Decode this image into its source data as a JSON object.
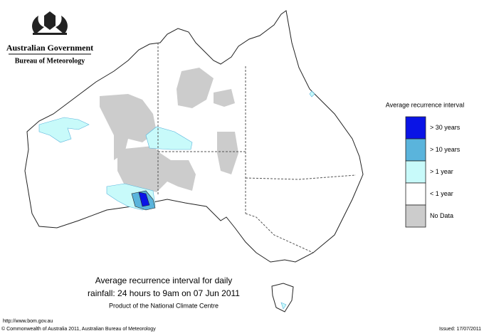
{
  "header": {
    "agency": "Australian Government",
    "bureau": "Bureau of Meteorology"
  },
  "legend": {
    "title": "Average recurrence interval",
    "items": [
      {
        "label": "> 30 years",
        "color": "#0a14e6"
      },
      {
        "label": "> 10 years",
        "color": "#5ab4dc"
      },
      {
        "label": "> 1 year",
        "color": "#c8fafa"
      },
      {
        "label": "< 1 year",
        "color": "#ffffff"
      },
      {
        "label": "No Data",
        "color": "#cccccc"
      }
    ]
  },
  "caption": {
    "line1": "Average recurrence interval for daily",
    "line2": "rainfall: 24 hours to 9am on 07 Jun 2011",
    "line3": "Product of the National Climate Centre"
  },
  "footer": {
    "url": "http://www.bom.gov.au",
    "copyright": "© Commonwealth of Australia 2011, Australian Bureau of Meteorology",
    "issued": "Issued: 17/07/2011"
  }
}
